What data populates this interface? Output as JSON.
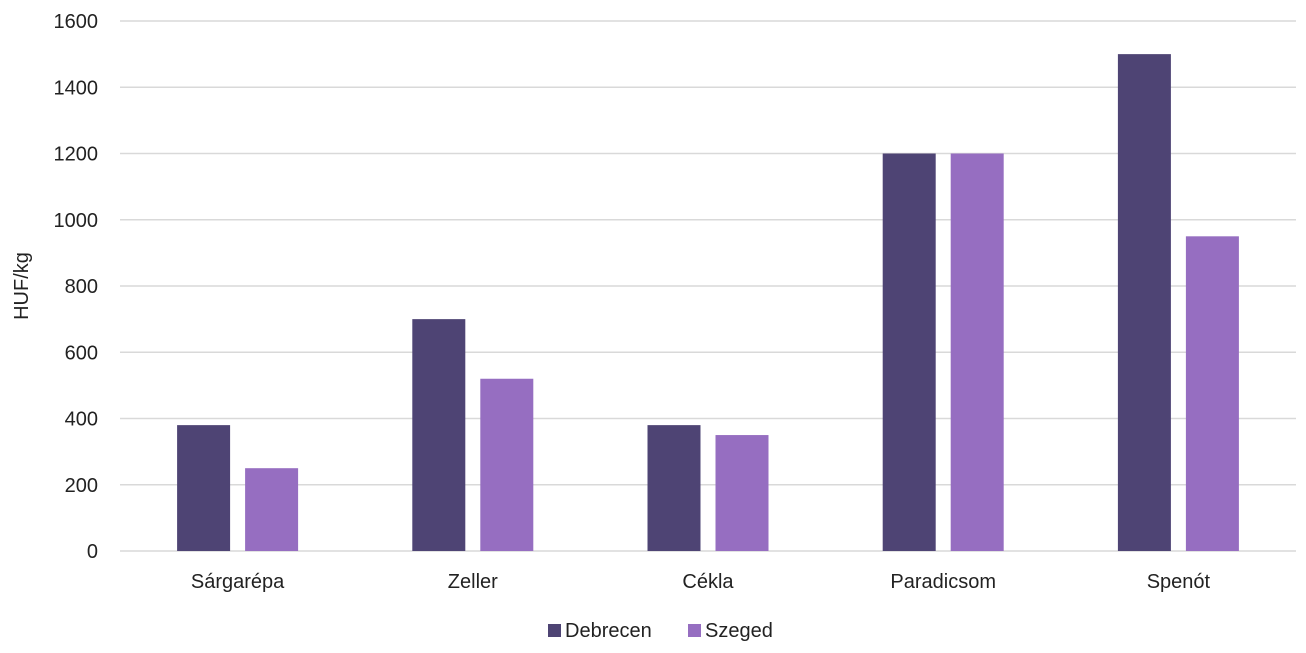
{
  "chart_data": {
    "type": "bar",
    "title": "",
    "xlabel": "",
    "ylabel": "HUF/kg",
    "ylim": [
      0,
      1600
    ],
    "yticks": [
      0,
      200,
      400,
      600,
      800,
      1000,
      1200,
      1400,
      1600
    ],
    "grid": true,
    "legend_position": "bottom",
    "categories": [
      "Sárgarépa",
      "Zeller",
      "Cékla",
      "Paradicsom",
      "Spenót"
    ],
    "series": [
      {
        "name": "Debrecen",
        "color": "#4e4474",
        "values": [
          380,
          700,
          380,
          1200,
          1500
        ]
      },
      {
        "name": "Szeged",
        "color": "#966ec1",
        "values": [
          250,
          520,
          350,
          1200,
          950
        ]
      }
    ]
  }
}
